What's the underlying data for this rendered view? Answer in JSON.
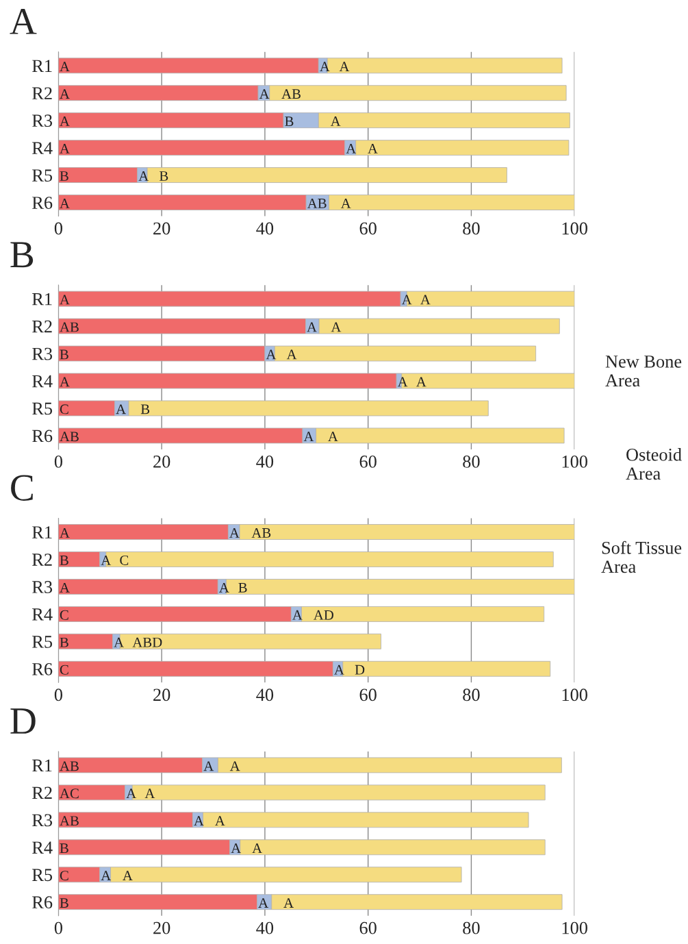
{
  "chart_data": [
    {
      "type": "bar",
      "title": "A",
      "orientation": "horizontal",
      "stacked": true,
      "categories": [
        "R1",
        "R2",
        "R3",
        "R4",
        "R5",
        "R6"
      ],
      "xlim": [
        0,
        100
      ],
      "xticks": [
        0,
        20,
        40,
        60,
        80,
        100
      ],
      "grid": "x",
      "series": [
        {
          "color": "#f06a6a",
          "values": [
            50.4,
            38.7,
            43.6,
            55.5,
            15.3,
            48.0
          ],
          "value_labels": [
            "A",
            "A",
            "A",
            "A",
            "B",
            "A"
          ]
        },
        {
          "color": "#a8bde0",
          "values": [
            1.7,
            2.2,
            6.8,
            2.1,
            1.9,
            4.4
          ],
          "value_labels": [
            "A",
            "A",
            "B",
            "A",
            "A",
            "AB"
          ]
        },
        {
          "color": "#f5dc80",
          "values": [
            45.5,
            57.5,
            48.7,
            41.3,
            69.7,
            47.6
          ],
          "value_labels": [
            "A",
            "AB",
            "A",
            "A",
            "B",
            "A"
          ]
        }
      ]
    },
    {
      "type": "bar",
      "title": "B",
      "orientation": "horizontal",
      "stacked": true,
      "categories": [
        "R1",
        "R2",
        "R3",
        "R4",
        "R5",
        "R6"
      ],
      "xlim": [
        0,
        100
      ],
      "xticks": [
        0,
        20,
        40,
        60,
        80,
        100
      ],
      "grid": "x",
      "legend": "right",
      "series": [
        {
          "name": "New Bone Area",
          "color": "#f06a6a",
          "values": [
            66.3,
            47.9,
            40.0,
            65.5,
            10.9,
            47.3
          ],
          "value_labels": [
            "A",
            "AB",
            "B",
            "A",
            "C",
            "AB"
          ]
        },
        {
          "name": "Osteoid Area",
          "color": "#a8bde0",
          "values": [
            1.2,
            2.6,
            1.9,
            1.0,
            2.7,
            2.6
          ],
          "value_labels": [
            "A",
            "A",
            "A",
            "A",
            "A",
            "A"
          ]
        },
        {
          "name": "Soft Tissue Area",
          "color": "#f5dc80",
          "values": [
            32.5,
            46.6,
            50.6,
            33.5,
            69.7,
            48.1
          ],
          "value_labels": [
            "A",
            "A",
            "A",
            "A",
            "B",
            "A"
          ]
        }
      ]
    },
    {
      "type": "bar",
      "title": "C",
      "orientation": "horizontal",
      "stacked": true,
      "categories": [
        "R1",
        "R2",
        "R3",
        "R4",
        "R5",
        "R6"
      ],
      "xlim": [
        0,
        100
      ],
      "xticks": [
        0,
        20,
        40,
        60,
        80,
        100
      ],
      "grid": "x",
      "series": [
        {
          "color": "#f06a6a",
          "values": [
            32.9,
            8.0,
            30.9,
            45.1,
            10.5,
            53.2
          ],
          "value_labels": [
            "A",
            "B",
            "A",
            "C",
            "B",
            "C"
          ]
        },
        {
          "color": "#a8bde0",
          "values": [
            2.2,
            1.2,
            1.6,
            2.0,
            1.4,
            1.9
          ],
          "value_labels": [
            "A",
            "A",
            "A",
            "A",
            "A",
            "A"
          ]
        },
        {
          "color": "#f5dc80",
          "values": [
            64.9,
            86.7,
            67.5,
            47.0,
            50.6,
            40.2
          ],
          "value_labels": [
            "AB",
            "C",
            "B",
            "AD",
            "ABD",
            "D"
          ]
        }
      ]
    },
    {
      "type": "bar",
      "title": "D",
      "orientation": "horizontal",
      "stacked": true,
      "categories": [
        "R1",
        "R2",
        "R3",
        "R4",
        "R5",
        "R6"
      ],
      "xlim": [
        0,
        100
      ],
      "xticks": [
        0,
        20,
        40,
        60,
        80,
        100
      ],
      "grid": "x",
      "series": [
        {
          "color": "#f06a6a",
          "values": [
            27.9,
            12.9,
            26.0,
            33.2,
            8.0,
            38.5
          ],
          "value_labels": [
            "AB",
            "AC",
            "AB",
            "B",
            "C",
            "B"
          ]
        },
        {
          "color": "#a8bde0",
          "values": [
            3.0,
            1.4,
            2.0,
            2.0,
            2.1,
            2.8
          ],
          "value_labels": [
            "A",
            "A",
            "A",
            "A",
            "A",
            "A"
          ]
        },
        {
          "color": "#f5dc80",
          "values": [
            66.6,
            80.0,
            63.1,
            59.1,
            68.0,
            56.3
          ],
          "value_labels": [
            "A",
            "A",
            "A",
            "A",
            "A",
            "A"
          ]
        }
      ]
    }
  ]
}
